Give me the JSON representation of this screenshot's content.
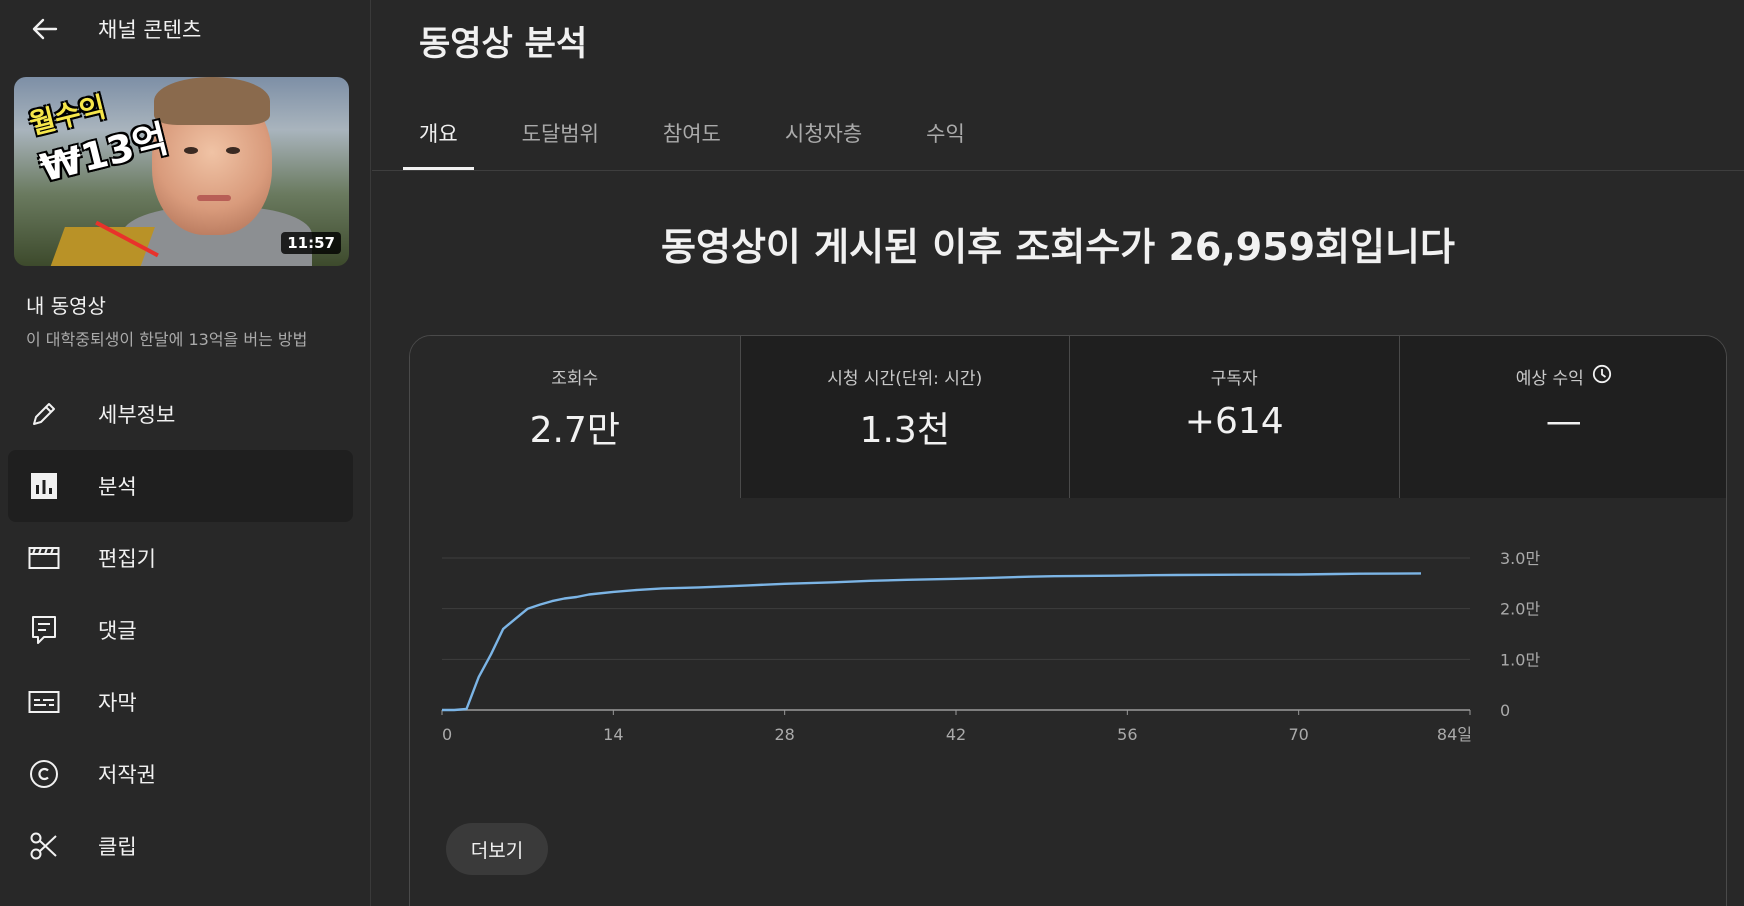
{
  "sidebar": {
    "back_label": "채널 콘텐츠",
    "thumbnail": {
      "overlay_line1": "월수익",
      "overlay_line2": "₩13억",
      "duration": "11:57"
    },
    "my_video_label": "내 동영상",
    "video_title": "이 대학중퇴생이 한달에 13억을 버는 방법",
    "items": [
      {
        "label": "세부정보",
        "icon": "pencil-icon"
      },
      {
        "label": "분석",
        "icon": "analytics-icon"
      },
      {
        "label": "편집기",
        "icon": "editor-icon"
      },
      {
        "label": "댓글",
        "icon": "comments-icon"
      },
      {
        "label": "자막",
        "icon": "subtitles-icon"
      },
      {
        "label": "저작권",
        "icon": "copyright-icon"
      },
      {
        "label": "클립",
        "icon": "scissors-icon"
      }
    ],
    "active_item": "분석"
  },
  "main": {
    "title": "동영상 분석",
    "tabs": [
      {
        "label": "개요"
      },
      {
        "label": "도달범위"
      },
      {
        "label": "참여도"
      },
      {
        "label": "시청자층"
      },
      {
        "label": "수익"
      }
    ],
    "active_tab": "개요",
    "headline": "동영상이 게시된 이후 조회수가 26,959회입니다",
    "metrics": [
      {
        "label": "조회수",
        "value": "2.7만"
      },
      {
        "label": "시청 시간(단위: 시간)",
        "value": "1.3천"
      },
      {
        "label": "구독자",
        "value": "+614"
      },
      {
        "label": "예상 수익",
        "value": "—",
        "icon": "clock-icon"
      }
    ],
    "more_label": "더보기"
  },
  "colors": {
    "background": "#282828",
    "line": "#7cb5e6",
    "accent": "#f1f1f1"
  },
  "chart_data": {
    "type": "line",
    "x_ticks": [
      "0",
      "14",
      "28",
      "42",
      "56",
      "70",
      "84일"
    ],
    "y_ticks": [
      "0",
      "1.0만",
      "2.0만",
      "3.0만"
    ],
    "xlim": [
      0,
      84
    ],
    "ylim": [
      0,
      30000
    ],
    "grid": true,
    "series": [
      {
        "x": [
          0,
          1,
          2,
          3,
          4,
          5,
          6,
          7,
          8,
          9,
          10,
          11,
          12,
          14,
          16,
          18,
          21,
          25,
          28,
          32,
          35,
          38,
          42,
          45,
          48,
          50,
          55,
          58,
          60,
          65,
          70,
          73,
          75,
          80
        ],
        "y": [
          0,
          0,
          200,
          6500,
          11000,
          16000,
          18000,
          20000,
          20800,
          21500,
          22000,
          22300,
          22800,
          23300,
          23700,
          24000,
          24200,
          24600,
          24900,
          25200,
          25500,
          25700,
          25900,
          26100,
          26300,
          26400,
          26500,
          26600,
          26650,
          26700,
          26750,
          26850,
          26900,
          26959
        ]
      }
    ]
  }
}
